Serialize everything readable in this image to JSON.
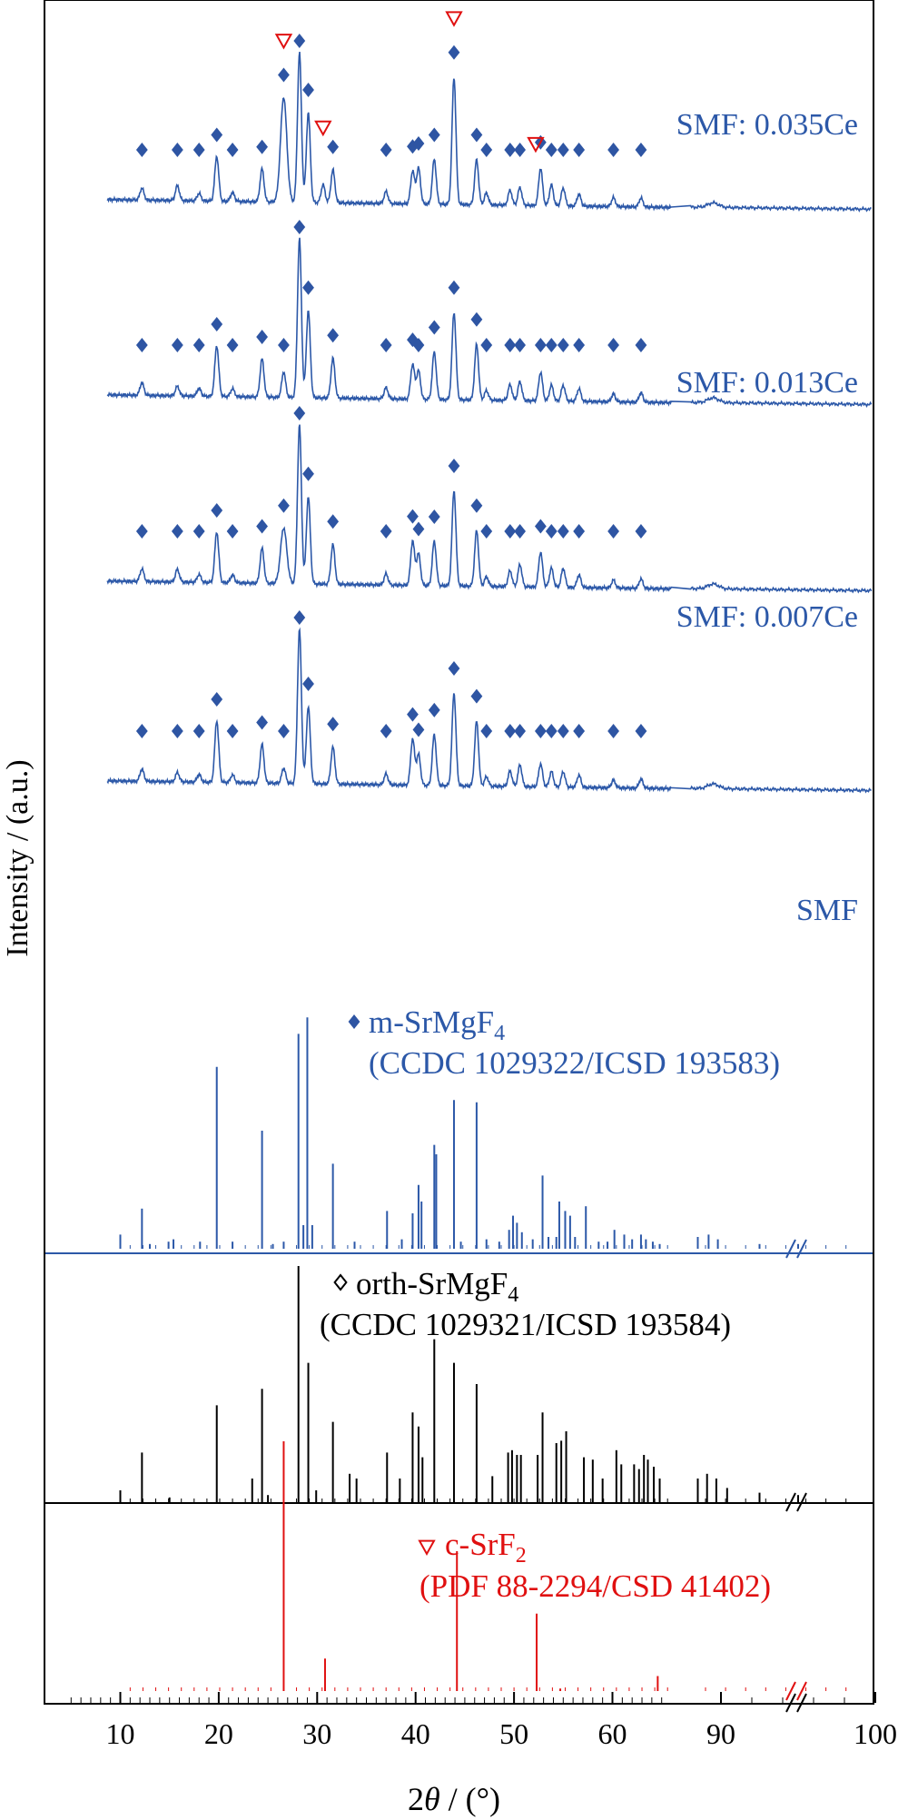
{
  "colors": {
    "blue": "#2c58a8",
    "marker": "#2e55a3",
    "black": "#000000",
    "red": "#e01010"
  },
  "chart_data": {
    "type": "line",
    "title": "",
    "xlabel": "2θ / (°)",
    "xlabel_parts": [
      "2",
      "θ",
      " / (°)"
    ],
    "ylabel": "Intensity / (a.u.)",
    "xlim": [
      5,
      100
    ],
    "axis_break": "between 65 and 88",
    "x_ticks": [
      10,
      20,
      30,
      40,
      50,
      60,
      90,
      100
    ],
    "x_tick_labels": [
      "10",
      "20",
      "30",
      "40",
      "50",
      "60",
      "90",
      "100"
    ],
    "series": [
      {
        "name": "SMF: 0.035Ce",
        "peaks": [
          [
            12.2,
            0.08
          ],
          [
            15.8,
            0.1
          ],
          [
            18.0,
            0.05
          ],
          [
            19.8,
            0.3
          ],
          [
            21.4,
            0.06
          ],
          [
            24.4,
            0.22
          ],
          [
            26.6,
            0.7
          ],
          [
            28.2,
            1.0
          ],
          [
            29.1,
            0.6
          ],
          [
            30.6,
            0.12
          ],
          [
            31.6,
            0.22
          ],
          [
            37.0,
            0.08
          ],
          [
            39.7,
            0.22
          ],
          [
            40.3,
            0.24
          ],
          [
            41.9,
            0.3
          ],
          [
            43.9,
            0.85
          ],
          [
            46.2,
            0.3
          ],
          [
            47.2,
            0.08
          ],
          [
            49.6,
            0.1
          ],
          [
            50.6,
            0.12
          ],
          [
            52.7,
            0.25
          ],
          [
            53.8,
            0.14
          ],
          [
            55.0,
            0.12
          ],
          [
            56.6,
            0.08
          ],
          [
            60.1,
            0.06
          ],
          [
            62.9,
            0.06
          ],
          [
            89.5,
            0.03
          ]
        ],
        "markers_m": [
          12.2,
          15.8,
          18.0,
          19.8,
          21.4,
          24.4,
          26.6,
          28.2,
          29.1,
          31.6,
          37.0,
          39.7,
          40.3,
          41.9,
          43.9,
          46.2,
          47.2,
          49.6,
          50.6,
          52.7,
          53.8,
          55.0,
          56.6,
          60.1,
          62.9
        ],
        "markers_c": [
          26.6,
          30.6,
          43.9,
          52.2
        ]
      },
      {
        "name": "SMF: 0.013Ce",
        "peaks": [
          [
            12.2,
            0.08
          ],
          [
            15.8,
            0.06
          ],
          [
            18.0,
            0.05
          ],
          [
            19.8,
            0.32
          ],
          [
            21.4,
            0.05
          ],
          [
            24.4,
            0.24
          ],
          [
            26.6,
            0.16
          ],
          [
            28.2,
            1.0
          ],
          [
            29.1,
            0.55
          ],
          [
            31.6,
            0.25
          ],
          [
            37.0,
            0.07
          ],
          [
            39.7,
            0.22
          ],
          [
            40.3,
            0.18
          ],
          [
            41.9,
            0.3
          ],
          [
            43.9,
            0.55
          ],
          [
            46.2,
            0.35
          ],
          [
            47.2,
            0.06
          ],
          [
            49.6,
            0.1
          ],
          [
            50.6,
            0.12
          ],
          [
            52.7,
            0.18
          ],
          [
            53.8,
            0.1
          ],
          [
            55.0,
            0.1
          ],
          [
            56.6,
            0.08
          ],
          [
            60.1,
            0.05
          ],
          [
            62.9,
            0.06
          ],
          [
            89.5,
            0.03
          ]
        ],
        "markers_m": [
          12.2,
          15.8,
          18.0,
          19.8,
          21.4,
          24.4,
          26.6,
          28.2,
          29.1,
          31.6,
          37.0,
          39.7,
          40.3,
          41.9,
          43.9,
          46.2,
          47.2,
          49.6,
          50.6,
          52.7,
          53.8,
          55.0,
          56.6,
          60.1,
          62.9
        ],
        "markers_c": []
      },
      {
        "name": "SMF: 0.007Ce",
        "peaks": [
          [
            12.2,
            0.08
          ],
          [
            15.8,
            0.08
          ],
          [
            18.0,
            0.05
          ],
          [
            19.8,
            0.32
          ],
          [
            21.4,
            0.05
          ],
          [
            24.4,
            0.22
          ],
          [
            26.6,
            0.35
          ],
          [
            28.2,
            1.0
          ],
          [
            29.1,
            0.55
          ],
          [
            31.6,
            0.25
          ],
          [
            37.0,
            0.07
          ],
          [
            39.7,
            0.28
          ],
          [
            40.3,
            0.2
          ],
          [
            41.9,
            0.28
          ],
          [
            43.9,
            0.6
          ],
          [
            46.2,
            0.35
          ],
          [
            47.2,
            0.06
          ],
          [
            49.6,
            0.1
          ],
          [
            50.6,
            0.14
          ],
          [
            52.7,
            0.22
          ],
          [
            53.8,
            0.12
          ],
          [
            55.0,
            0.12
          ],
          [
            56.6,
            0.08
          ],
          [
            60.1,
            0.05
          ],
          [
            62.9,
            0.06
          ],
          [
            89.5,
            0.03
          ]
        ],
        "markers_m": [
          12.2,
          15.8,
          18.0,
          19.8,
          21.4,
          24.4,
          26.6,
          28.2,
          29.1,
          31.6,
          37.0,
          39.7,
          40.3,
          41.9,
          43.9,
          46.2,
          47.2,
          49.6,
          50.6,
          52.7,
          53.8,
          55.0,
          56.6,
          60.1,
          62.9
        ],
        "markers_c": []
      },
      {
        "name": "SMF",
        "peaks": [
          [
            12.2,
            0.08
          ],
          [
            15.8,
            0.06
          ],
          [
            18.0,
            0.05
          ],
          [
            19.8,
            0.4
          ],
          [
            21.4,
            0.05
          ],
          [
            24.4,
            0.25
          ],
          [
            26.6,
            0.1
          ],
          [
            28.2,
            1.0
          ],
          [
            29.1,
            0.5
          ],
          [
            31.6,
            0.24
          ],
          [
            37.0,
            0.07
          ],
          [
            39.7,
            0.3
          ],
          [
            40.3,
            0.2
          ],
          [
            41.9,
            0.33
          ],
          [
            43.9,
            0.6
          ],
          [
            46.2,
            0.42
          ],
          [
            47.2,
            0.06
          ],
          [
            49.6,
            0.1
          ],
          [
            50.6,
            0.14
          ],
          [
            52.7,
            0.15
          ],
          [
            53.8,
            0.1
          ],
          [
            55.0,
            0.1
          ],
          [
            56.6,
            0.08
          ],
          [
            60.1,
            0.05
          ],
          [
            62.9,
            0.06
          ],
          [
            89.5,
            0.03
          ]
        ],
        "markers_m": [
          12.2,
          15.8,
          18.0,
          19.8,
          21.4,
          24.4,
          26.6,
          28.2,
          29.1,
          31.6,
          37.0,
          39.7,
          40.3,
          41.9,
          43.9,
          46.2,
          47.2,
          49.6,
          50.6,
          52.7,
          53.8,
          55.0,
          56.6,
          60.1,
          62.9
        ],
        "markers_c": []
      }
    ],
    "references": [
      {
        "name": "m-SrMgF4",
        "name_parts": [
          "m-SrMgF",
          "4"
        ],
        "source": "(CCDC 1029322/ICSD 193583)",
        "marker": "filled-diamond",
        "lines": [
          [
            10.0,
            0.06
          ],
          [
            12.2,
            0.17
          ],
          [
            13.0,
            0.02
          ],
          [
            14.9,
            0.03
          ],
          [
            15.4,
            0.04
          ],
          [
            18.1,
            0.03
          ],
          [
            19.8,
            0.77
          ],
          [
            21.4,
            0.03
          ],
          [
            24.4,
            0.5
          ],
          [
            25.5,
            0.02
          ],
          [
            26.6,
            0.03
          ],
          [
            28.1,
            0.91
          ],
          [
            28.6,
            0.1
          ],
          [
            29.0,
            0.98
          ],
          [
            29.5,
            0.1
          ],
          [
            31.6,
            0.36
          ],
          [
            33.8,
            0.03
          ],
          [
            37.1,
            0.16
          ],
          [
            38.6,
            0.04
          ],
          [
            39.7,
            0.15
          ],
          [
            40.3,
            0.27
          ],
          [
            40.6,
            0.2
          ],
          [
            41.9,
            0.44
          ],
          [
            42.1,
            0.4
          ],
          [
            43.9,
            0.63
          ],
          [
            44.6,
            0.03
          ],
          [
            46.2,
            0.62
          ],
          [
            47.2,
            0.04
          ],
          [
            48.5,
            0.03
          ],
          [
            49.5,
            0.08
          ],
          [
            49.9,
            0.14
          ],
          [
            50.3,
            0.11
          ],
          [
            50.8,
            0.07
          ],
          [
            51.9,
            0.04
          ],
          [
            52.9,
            0.31
          ],
          [
            53.5,
            0.05
          ],
          [
            54.3,
            0.05
          ],
          [
            54.6,
            0.2
          ],
          [
            55.2,
            0.16
          ],
          [
            55.7,
            0.14
          ],
          [
            56.2,
            0.05
          ],
          [
            57.3,
            0.18
          ],
          [
            58.6,
            0.03
          ],
          [
            59.5,
            0.03
          ],
          [
            60.2,
            0.08
          ],
          [
            61.2,
            0.06
          ],
          [
            62.0,
            0.04
          ],
          [
            62.9,
            0.06
          ],
          [
            63.4,
            0.04
          ],
          [
            64.1,
            0.03
          ],
          [
            64.8,
            0.02
          ],
          [
            88.5,
            0.05
          ],
          [
            89.2,
            0.06
          ],
          [
            89.8,
            0.04
          ],
          [
            92.5,
            0.02
          ],
          [
            95.0,
            0.02
          ]
        ]
      },
      {
        "name": "orth-SrMgF4",
        "name_parts": [
          "orth-SrMgF",
          "4"
        ],
        "source": "(CCDC 1029321/ICSD 193584)",
        "marker": "open-diamond",
        "lines": [
          [
            10.0,
            0.05
          ],
          [
            12.2,
            0.21
          ],
          [
            15.0,
            0.02
          ],
          [
            19.8,
            0.41
          ],
          [
            23.4,
            0.1
          ],
          [
            24.4,
            0.48
          ],
          [
            25.0,
            0.03
          ],
          [
            28.1,
            1.0
          ],
          [
            29.1,
            0.59
          ],
          [
            29.9,
            0.05
          ],
          [
            31.6,
            0.34
          ],
          [
            33.3,
            0.12
          ],
          [
            34.0,
            0.1
          ],
          [
            37.1,
            0.21
          ],
          [
            38.4,
            0.1
          ],
          [
            39.7,
            0.38
          ],
          [
            40.3,
            0.32
          ],
          [
            40.7,
            0.19
          ],
          [
            41.9,
            0.69
          ],
          [
            43.9,
            0.59
          ],
          [
            46.2,
            0.5
          ],
          [
            47.8,
            0.11
          ],
          [
            49.4,
            0.21
          ],
          [
            49.8,
            0.22
          ],
          [
            50.3,
            0.2
          ],
          [
            50.7,
            0.2
          ],
          [
            52.4,
            0.2
          ],
          [
            52.9,
            0.38
          ],
          [
            54.3,
            0.25
          ],
          [
            54.8,
            0.26
          ],
          [
            55.3,
            0.3
          ],
          [
            57.1,
            0.19
          ],
          [
            58.0,
            0.18
          ],
          [
            59.0,
            0.1
          ],
          [
            60.4,
            0.22
          ],
          [
            60.9,
            0.16
          ],
          [
            62.2,
            0.16
          ],
          [
            62.7,
            0.14
          ],
          [
            63.2,
            0.2
          ],
          [
            63.6,
            0.18
          ],
          [
            64.2,
            0.15
          ],
          [
            64.8,
            0.1
          ],
          [
            88.5,
            0.1
          ],
          [
            89.1,
            0.12
          ],
          [
            89.7,
            0.1
          ],
          [
            90.4,
            0.06
          ],
          [
            92.5,
            0.04
          ],
          [
            95.0,
            0.03
          ]
        ]
      },
      {
        "name": "c-SrF2",
        "name_parts": [
          "c-SrF",
          "2"
        ],
        "source": "(PDF 88-2294/CSD 41402)",
        "marker": "open-triangle",
        "lines": [
          [
            26.6,
            1.0
          ],
          [
            30.8,
            0.13
          ],
          [
            44.2,
            0.56
          ],
          [
            52.3,
            0.31
          ],
          [
            54.7,
            0.01
          ],
          [
            64.6,
            0.06
          ]
        ]
      }
    ]
  }
}
